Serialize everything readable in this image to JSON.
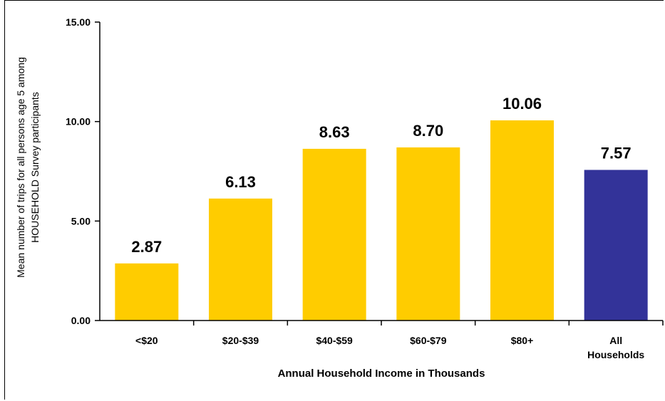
{
  "chart_data": {
    "type": "bar",
    "categories": [
      "<$20",
      "$20-$39",
      "$40-$59",
      "$60-$79",
      "$80+",
      "All Households"
    ],
    "category_lines": [
      [
        "<$20"
      ],
      [
        "$20-$39"
      ],
      [
        "$40-$59"
      ],
      [
        "$60-$79"
      ],
      [
        "$80+"
      ],
      [
        "All",
        "Households"
      ]
    ],
    "values": [
      2.87,
      6.13,
      8.63,
      8.7,
      10.06,
      7.57
    ],
    "data_labels": [
      "2.87",
      "6.13",
      "8.63",
      "8.70",
      "10.06",
      "7.57"
    ],
    "bar_colors": [
      "#FFCC00",
      "#FFCC00",
      "#FFCC00",
      "#FFCC00",
      "#FFCC00",
      "#333399"
    ],
    "xlabel": "Annual Household Income in Thousands",
    "ylabel_lines": [
      "Mean number of trips for all persons age 5 among",
      "HOUSEHOLD Survey participants"
    ],
    "ylim": [
      0,
      15
    ],
    "yticks": [
      0,
      5,
      10,
      15
    ],
    "ytick_labels": [
      "0.00",
      "5.00",
      "10.00",
      "15.00"
    ],
    "grid": false,
    "legend": "none"
  }
}
